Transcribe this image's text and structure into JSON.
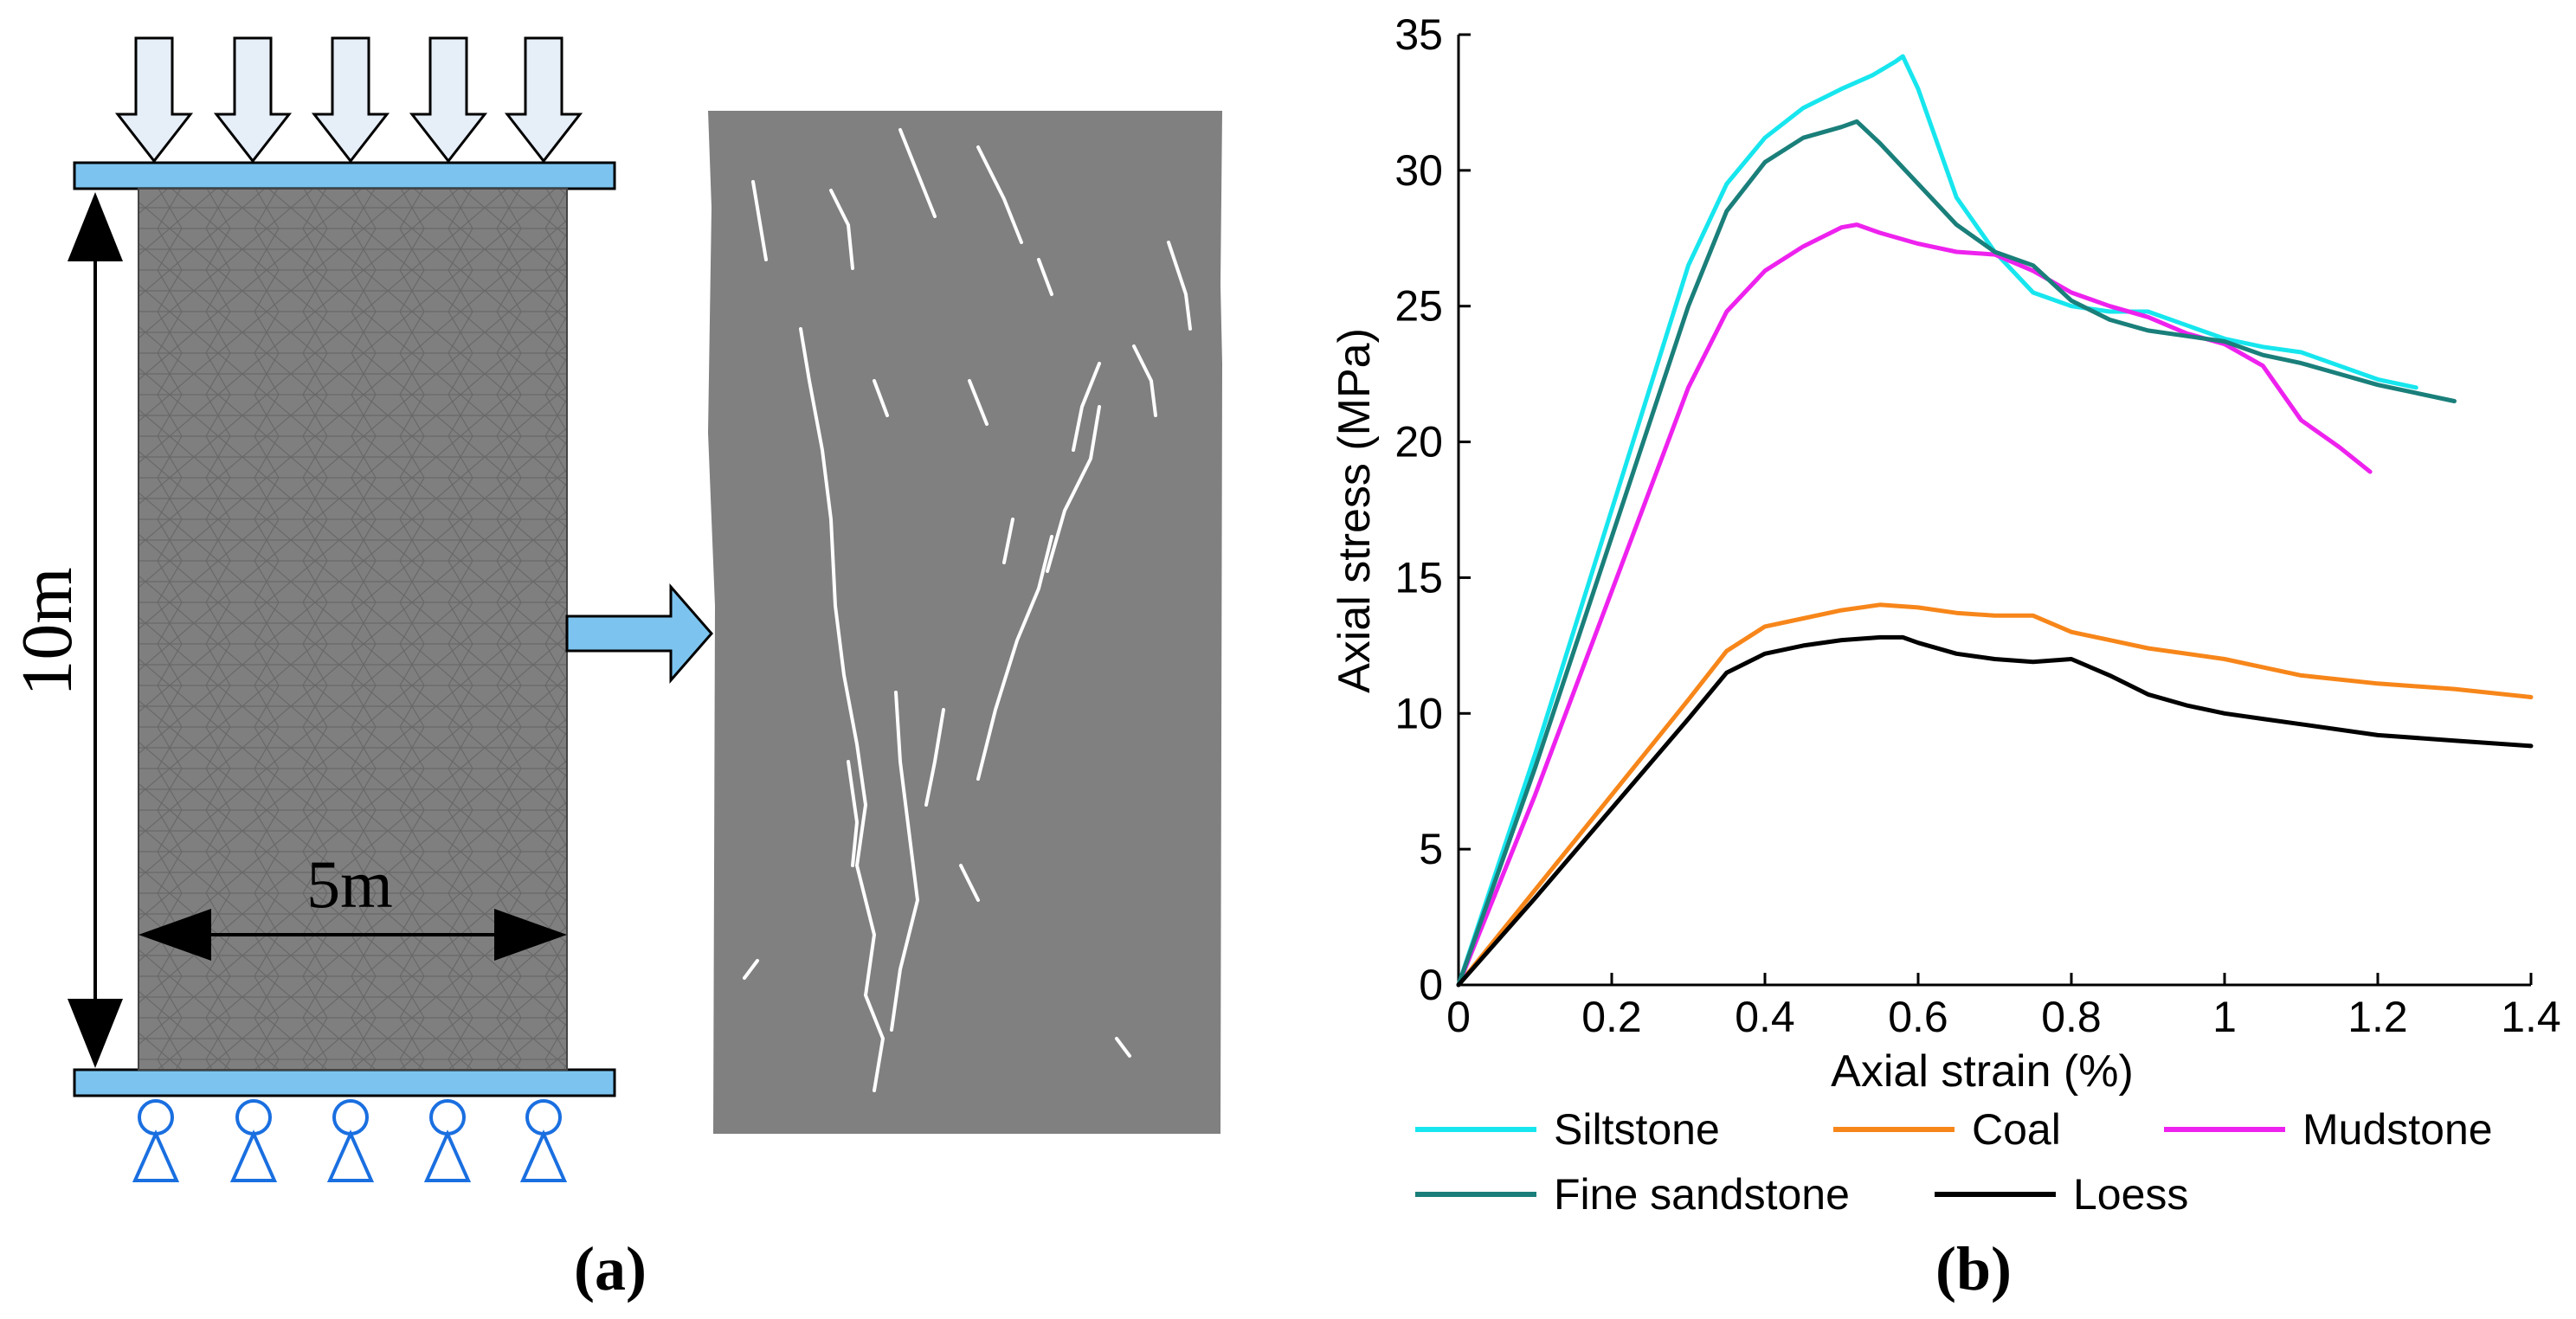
{
  "panel_a": {
    "label": "(a)",
    "height_label": "10m",
    "width_label": "5m",
    "colors": {
      "plate": "#7cc4ef",
      "arrow_fill": "#e6eef8",
      "support": "#1a6fe0",
      "specimen": "#7f7f7f",
      "mesh": "#5a5a5a",
      "crack": "#ffffff"
    }
  },
  "panel_b": {
    "label": "(b)"
  },
  "chart_data": {
    "type": "line",
    "title": "",
    "xlabel": "Axial strain (%)",
    "ylabel": "Axial stress (MPa)",
    "xlim": [
      0,
      1.4
    ],
    "ylim": [
      0,
      35
    ],
    "xticks": [
      "0",
      "0.2",
      "0.4",
      "0.6",
      "0.8",
      "1",
      "1.2",
      "1.4"
    ],
    "yticks": [
      "0",
      "5",
      "10",
      "15",
      "20",
      "25",
      "30",
      "35"
    ],
    "grid": false,
    "legend_position": "bottom",
    "series": [
      {
        "name": "Siltstone",
        "color": "#17e6ee",
        "x": [
          0,
          0.1,
          0.2,
          0.3,
          0.35,
          0.4,
          0.45,
          0.5,
          0.54,
          0.57,
          0.58,
          0.6,
          0.65,
          0.7,
          0.75,
          0.8,
          0.85,
          0.9,
          0.95,
          1.0,
          1.05,
          1.1,
          1.15,
          1.2,
          1.25
        ],
        "y": [
          0,
          8.5,
          17.5,
          26.5,
          29.5,
          31.2,
          32.3,
          33.0,
          33.5,
          34.0,
          34.2,
          33.0,
          29.0,
          27.0,
          25.5,
          25.0,
          24.8,
          24.8,
          24.3,
          23.8,
          23.5,
          23.3,
          22.8,
          22.3,
          22.0
        ]
      },
      {
        "name": "Coal",
        "color": "#f7861a",
        "x": [
          0,
          0.1,
          0.2,
          0.3,
          0.35,
          0.4,
          0.45,
          0.5,
          0.55,
          0.6,
          0.65,
          0.7,
          0.75,
          0.8,
          0.85,
          0.9,
          1.0,
          1.1,
          1.2,
          1.3,
          1.4
        ],
        "y": [
          0,
          3.5,
          7.0,
          10.5,
          12.3,
          13.2,
          13.5,
          13.8,
          14.0,
          13.9,
          13.7,
          13.6,
          13.6,
          13.0,
          12.7,
          12.4,
          12.0,
          11.4,
          11.1,
          10.9,
          10.6
        ]
      },
      {
        "name": "Mudstone",
        "color": "#ee22ee",
        "x": [
          0,
          0.1,
          0.2,
          0.3,
          0.35,
          0.4,
          0.45,
          0.5,
          0.52,
          0.55,
          0.6,
          0.65,
          0.7,
          0.75,
          0.8,
          0.85,
          0.9,
          0.95,
          1.0,
          1.05,
          1.1,
          1.15,
          1.19
        ],
        "y": [
          0,
          7.0,
          14.5,
          22.0,
          24.8,
          26.3,
          27.2,
          27.9,
          28.0,
          27.7,
          27.3,
          27.0,
          26.9,
          26.3,
          25.5,
          25.0,
          24.6,
          24.0,
          23.6,
          22.8,
          20.8,
          19.8,
          18.9
        ]
      },
      {
        "name": "Fine sandstone",
        "color": "#1a7f7a",
        "x": [
          0,
          0.1,
          0.2,
          0.3,
          0.35,
          0.4,
          0.45,
          0.5,
          0.52,
          0.55,
          0.6,
          0.65,
          0.7,
          0.75,
          0.8,
          0.85,
          0.9,
          0.95,
          1.0,
          1.05,
          1.1,
          1.15,
          1.2,
          1.25,
          1.3
        ],
        "y": [
          0,
          8.0,
          16.5,
          25.0,
          28.5,
          30.3,
          31.2,
          31.6,
          31.8,
          31.0,
          29.5,
          28.0,
          27.0,
          26.5,
          25.2,
          24.5,
          24.1,
          23.9,
          23.7,
          23.2,
          22.9,
          22.5,
          22.1,
          21.8,
          21.5
        ]
      },
      {
        "name": "Loess",
        "color": "#000000",
        "x": [
          0,
          0.1,
          0.2,
          0.3,
          0.35,
          0.4,
          0.45,
          0.5,
          0.55,
          0.58,
          0.6,
          0.65,
          0.7,
          0.75,
          0.8,
          0.85,
          0.9,
          0.95,
          1.0,
          1.05,
          1.1,
          1.2,
          1.3,
          1.4
        ],
        "y": [
          0,
          3.2,
          6.5,
          9.8,
          11.5,
          12.2,
          12.5,
          12.7,
          12.8,
          12.8,
          12.6,
          12.2,
          12.0,
          11.9,
          12.0,
          11.4,
          10.7,
          10.3,
          10.0,
          9.8,
          9.6,
          9.2,
          9.0,
          8.8
        ]
      }
    ]
  }
}
